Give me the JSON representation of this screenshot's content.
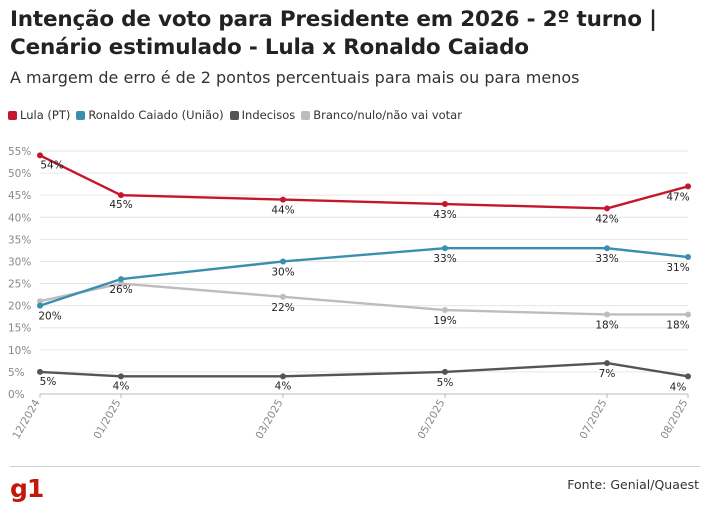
{
  "header": {
    "title": "Intenção de voto para Presidente em 2026 - 2º turno | Cenário estimulado - Lula x Ronaldo Caiado",
    "subtitle": "A margem de erro é de 2 pontos percentuais para mais ou para menos"
  },
  "footer": {
    "logo": "g1",
    "source": "Fonte: Genial/Quaest"
  },
  "chart_data": {
    "type": "line",
    "title": "Intenção de voto para Presidente em 2026 - 2º turno | Cenário estimulado - Lula x Ronaldo Caiado",
    "subtitle": "A margem de erro é de 2 pontos percentuais para mais ou para menos",
    "x": [
      "12/2024",
      "01/2025",
      "03/2025",
      "05/2025",
      "07/2025",
      "08/2025"
    ],
    "x_positions_months": [
      0,
      1,
      3,
      5,
      7,
      8
    ],
    "ylim": [
      0,
      55
    ],
    "yticks": [
      "0%",
      "5%",
      "10%",
      "15%",
      "20%",
      "25%",
      "30%",
      "35%",
      "40%",
      "45%",
      "50%",
      "55%"
    ],
    "grid": true,
    "legend_position": "top-left",
    "series": [
      {
        "name": "Lula (PT)",
        "color": "#c4172c",
        "values": [
          54,
          45,
          44,
          43,
          42,
          47
        ],
        "labels": [
          "54%",
          "45%",
          "44%",
          "43%",
          "42%",
          "47%"
        ]
      },
      {
        "name": "Ronaldo Caiado (União)",
        "color": "#3a8fb0",
        "values": [
          20,
          26,
          30,
          33,
          33,
          31
        ],
        "labels": [
          "20%",
          "26%",
          "30%",
          "33%",
          "33%",
          "31%"
        ]
      },
      {
        "name": "Indecisos",
        "color": "#555555",
        "values": [
          5,
          4,
          4,
          5,
          7,
          4
        ],
        "labels": [
          "5%",
          "4%",
          "4%",
          "5%",
          "7%",
          "4%"
        ]
      },
      {
        "name": "Branco/nulo/não vai votar",
        "color": "#bdbdbd",
        "values": [
          21,
          25,
          22,
          19,
          18,
          18
        ],
        "labels": [
          "",
          "",
          "22%",
          "19%",
          "18%",
          "18%"
        ]
      }
    ]
  }
}
